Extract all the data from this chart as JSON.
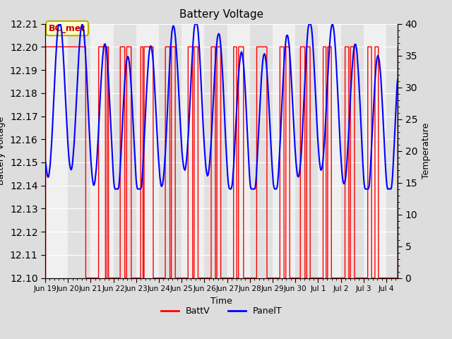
{
  "title": "Battery Voltage",
  "xlabel": "Time",
  "ylabel_left": "Battery Voltage",
  "ylabel_right": "Temperature",
  "ylim_left": [
    12.1,
    12.21
  ],
  "ylim_right": [
    0,
    40
  ],
  "annotation_text": "BC_met",
  "annotation_color": "#cc0000",
  "annotation_bg": "#ffffcc",
  "annotation_edge": "#bbaa00",
  "bg_color": "#dddddd",
  "plot_bg_light": "#f0f0f0",
  "plot_bg_dark": "#e0e0e0",
  "grid_color": "#ffffff",
  "legend_labels": [
    "BattV",
    "PanelT"
  ],
  "legend_colors": [
    "red",
    "blue"
  ],
  "x_tick_labels": [
    "Jun 19",
    "Jun 20",
    "Jun 21",
    "Jun 22",
    "Jun 23",
    "Jun 24",
    "Jun 25",
    "Jun 26",
    "Jun 27",
    "Jun 28",
    "Jun 29",
    "Jun 30",
    "Jul 1",
    "Jul 2",
    "Jul 3",
    "Jul 4"
  ],
  "yticks_left": [
    12.1,
    12.11,
    12.12,
    12.13,
    12.14,
    12.15,
    12.16,
    12.17,
    12.18,
    12.19,
    12.2,
    12.21
  ],
  "yticks_right": [
    0,
    5,
    10,
    15,
    20,
    25,
    30,
    35,
    40
  ],
  "n_days": 16
}
